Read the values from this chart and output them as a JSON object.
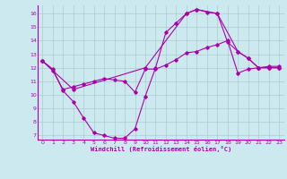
{
  "title": "",
  "xlabel": "Windchill (Refroidissement éolien,°C)",
  "ylabel": "",
  "bg_color": "#cce9f0",
  "line_color": "#aa00aa",
  "grid_color": "#aacccc",
  "xmin": -0.5,
  "xmax": 23.5,
  "ymin": 6.7,
  "ymax": 16.6,
  "yticks": [
    7,
    8,
    9,
    10,
    11,
    12,
    13,
    14,
    15,
    16
  ],
  "xticks": [
    0,
    1,
    2,
    3,
    4,
    5,
    6,
    7,
    8,
    9,
    10,
    11,
    12,
    13,
    14,
    15,
    16,
    17,
    18,
    19,
    20,
    21,
    22,
    23
  ],
  "line1_x": [
    0,
    1,
    2,
    3,
    4,
    5,
    6,
    7,
    8,
    9,
    10,
    11,
    12,
    13,
    14,
    15,
    16,
    17,
    18,
    19,
    20,
    21,
    22,
    23
  ],
  "line1_y": [
    12.5,
    11.9,
    10.3,
    9.5,
    8.3,
    7.2,
    7.0,
    6.8,
    6.8,
    7.5,
    9.9,
    12.0,
    14.6,
    15.3,
    16.0,
    16.3,
    16.1,
    16.0,
    13.9,
    13.2,
    12.7,
    12.0,
    12.0,
    12.0
  ],
  "line2_x": [
    0,
    1,
    2,
    3,
    4,
    5,
    6,
    7,
    8,
    9,
    10,
    11,
    12,
    13,
    14,
    15,
    16,
    17,
    18,
    19,
    20,
    21,
    22,
    23
  ],
  "line2_y": [
    12.5,
    11.8,
    10.4,
    10.6,
    10.8,
    11.0,
    11.2,
    11.1,
    11.0,
    10.2,
    11.9,
    11.9,
    12.2,
    12.6,
    13.1,
    13.2,
    13.5,
    13.7,
    14.0,
    11.6,
    11.9,
    12.0,
    12.1,
    12.1
  ],
  "line3_x": [
    0,
    3,
    10,
    14,
    15,
    17,
    19,
    20,
    21,
    22,
    23
  ],
  "line3_y": [
    12.5,
    10.4,
    12.0,
    16.0,
    16.3,
    16.0,
    13.2,
    12.7,
    12.0,
    12.0,
    12.0
  ]
}
